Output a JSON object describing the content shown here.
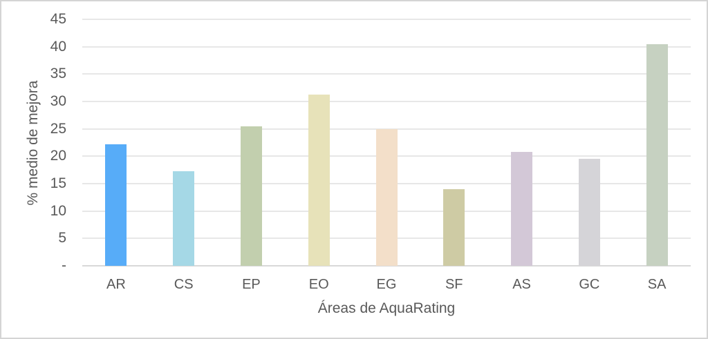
{
  "chart_data": {
    "type": "bar",
    "title": "",
    "xlabel": "Áreas de AquaRating",
    "ylabel": "% medio de mejora",
    "categories": [
      "AR",
      "CS",
      "EP",
      "EO",
      "EG",
      "SF",
      "AS",
      "GC",
      "SA"
    ],
    "values": [
      22.2,
      17.3,
      25.5,
      31.2,
      25.0,
      14.0,
      20.8,
      19.5,
      40.5
    ],
    "bar_colors": [
      "#57acf8",
      "#a5d8e6",
      "#c2cfae",
      "#e7e2b9",
      "#f3dfc9",
      "#cecba4",
      "#d3c8d7",
      "#d5d4d8",
      "#c6d1c1"
    ],
    "ylim": [
      0,
      45
    ],
    "y_ticks": [
      {
        "value": 45,
        "label": "45"
      },
      {
        "value": 40,
        "label": "40"
      },
      {
        "value": 35,
        "label": "35"
      },
      {
        "value": 30,
        "label": "30"
      },
      {
        "value": 25,
        "label": "25"
      },
      {
        "value": 20,
        "label": "20"
      },
      {
        "value": 15,
        "label": "15"
      },
      {
        "value": 10,
        "label": "10"
      },
      {
        "value": 5,
        "label": "5"
      },
      {
        "value": 0,
        "label": "-"
      }
    ],
    "grid": "horizontal",
    "legend": "none",
    "style": {
      "text_color": "#595959",
      "gridline_color": "#e7e7e7",
      "axis_line_color": "#d8d8d8",
      "background": "#ffffff",
      "border_color": "#d4d4d4"
    }
  }
}
